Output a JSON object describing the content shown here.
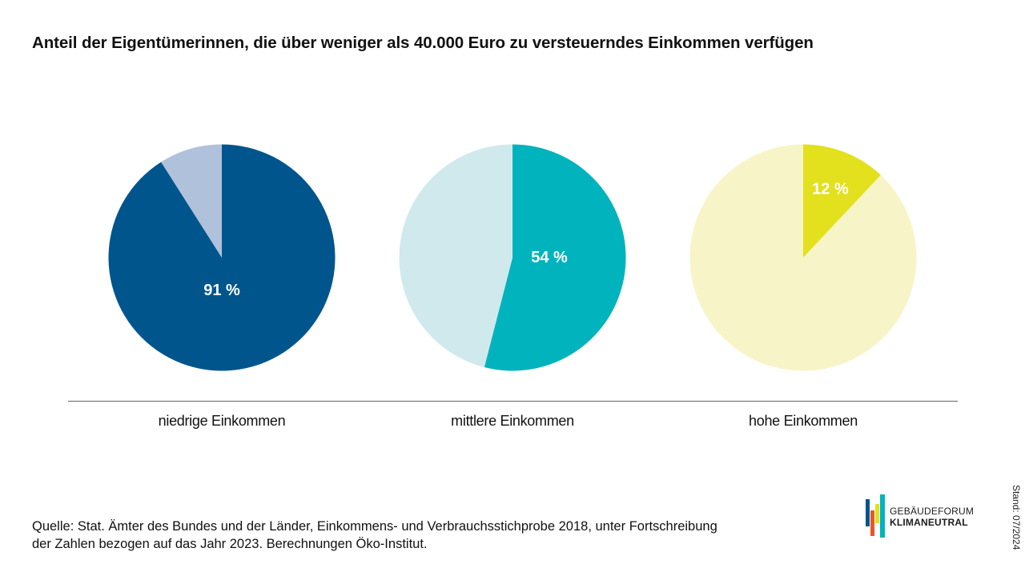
{
  "title": "Anteil der Eigentümerinnen, die über weniger als 40.000 Euro zu versteuerndes Einkommen verfügen",
  "chart_data": {
    "type": "pie",
    "title": "Anteil der Eigentümerinnen, die über weniger als 40.000 Euro zu versteuerndes Einkommen verfügen",
    "charts": [
      {
        "category": "niedrige Einkommen",
        "value": 91,
        "value_label": "91 %",
        "color": "#00558C",
        "rest_color": "#AFC1DB"
      },
      {
        "category": "mittlere Einkommen",
        "value": 54,
        "value_label": "54 %",
        "color": "#00B3BD",
        "rest_color": "#D0E9EC"
      },
      {
        "category": "hohe Einkommen",
        "value": 12,
        "value_label": "12 %",
        "color": "#E3E01D",
        "rest_color": "#F7F4C8"
      }
    ]
  },
  "source": {
    "line1": "Quelle: Stat. Ämter des Bundes und der Länder, Einkommens- und Verbrauchsstichprobe 2018, unter Fortschreibung",
    "line2": "der Zahlen bezogen auf das Jahr 2023. Berechnungen Öko-Institut."
  },
  "stand": "Stand: 07/2024",
  "logo": {
    "line1": "GEBÄUDEFORUM",
    "line2": "KLIMANEUTRAL"
  }
}
